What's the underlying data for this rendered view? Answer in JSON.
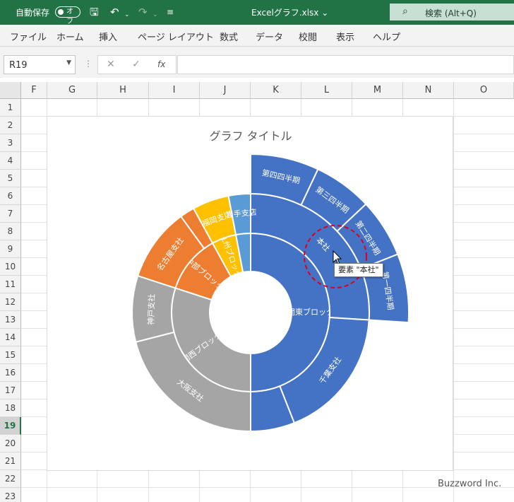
{
  "titlebar": {
    "autosave_label": "自動保存",
    "autosave_state": "オフ",
    "filename": "Excelグラフ.xlsx",
    "search_label": "検索 (Alt+Q)"
  },
  "ribbon": {
    "tabs": [
      "ファイル",
      "ホーム",
      "挿入",
      "ページ レイアウト",
      "数式",
      "データ",
      "校閲",
      "表示",
      "ヘルプ"
    ]
  },
  "formula_bar": {
    "name_box": "R19",
    "fx": "fx",
    "value": ""
  },
  "sheet": {
    "columns": [
      "F",
      "G",
      "H",
      "I",
      "J",
      "K",
      "L",
      "M",
      "N",
      "O"
    ],
    "rows": [
      "1",
      "2",
      "3",
      "4",
      "5",
      "6",
      "7",
      "8",
      "9",
      "10",
      "11",
      "12",
      "13",
      "14",
      "15",
      "16",
      "17",
      "18",
      "19",
      "20",
      "21",
      "22",
      "23"
    ],
    "selected_row": "19"
  },
  "chart_data": {
    "type": "sunburst",
    "title": "グラフ タイトル",
    "colors": {
      "blue": "#4472c4",
      "gray": "#a5a5a5",
      "orange": "#ed7d31",
      "yellow": "#ffc000",
      "lightblue": "#5b9bd5"
    },
    "inner": [
      {
        "label": "関東ブロック",
        "value": 0.5,
        "color": "blue"
      },
      {
        "label": "関西ブロック",
        "value": 0.3,
        "color": "gray"
      },
      {
        "label": "中部ブロック",
        "value": 0.12,
        "color": "orange"
      },
      {
        "label": "九州ブロック",
        "value": 0.05,
        "color": "yellow"
      },
      {
        "label": "",
        "value": 0.03,
        "color": "lightblue"
      }
    ],
    "middle": [
      {
        "label": "本社",
        "value": 0.26,
        "color": "blue"
      },
      {
        "label": "千葉支社",
        "value": 0.18,
        "color": "blue"
      },
      {
        "label": "",
        "value": 0.06,
        "color": "blue"
      },
      {
        "label": "大阪支社",
        "value": 0.21,
        "color": "gray"
      },
      {
        "label": "神戸支社",
        "value": 0.09,
        "color": "gray"
      },
      {
        "label": "名古屋支社",
        "value": 0.1,
        "color": "orange"
      },
      {
        "label": "",
        "value": 0.02,
        "color": "orange"
      },
      {
        "label": "福岡支店",
        "value": 0.05,
        "color": "yellow"
      },
      {
        "label": "岩手支店",
        "value": 0.03,
        "color": "lightblue"
      }
    ],
    "outer": [
      {
        "label": "第四四半期",
        "value": 0.07,
        "color": "blue"
      },
      {
        "label": "第三四半期",
        "value": 0.06,
        "color": "blue"
      },
      {
        "label": "第二四半期",
        "value": 0.06,
        "color": "blue"
      },
      {
        "label": "第一四半期",
        "value": 0.07,
        "color": "blue"
      }
    ]
  },
  "tooltip": "要素 \"本社\"",
  "watermark": "Buzzword Inc."
}
